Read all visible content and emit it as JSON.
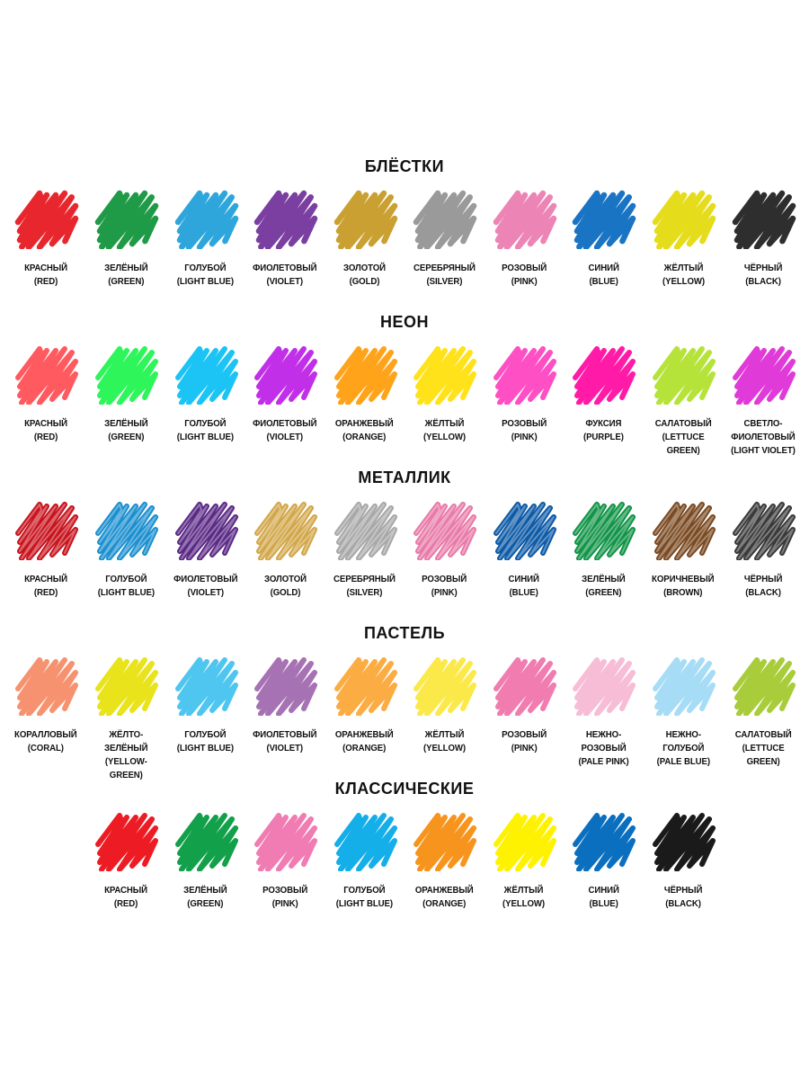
{
  "sections": [
    {
      "title": "БЛЁСТКИ",
      "style": "glitter",
      "items": [
        {
          "label": "КРАСНЫЙ\n(RED)",
          "color": "#e8262d"
        },
        {
          "label": "ЗЕЛЁНЫЙ\n(GREEN)",
          "color": "#1f9a46"
        },
        {
          "label": "ГОЛУБОЙ\n(LIGHT BLUE)",
          "color": "#2ea6dc"
        },
        {
          "label": "ФИОЛЕТОВЫЙ\n(VIOLET)",
          "color": "#7a3fa0"
        },
        {
          "label": "ЗОЛОТОЙ\n(GOLD)",
          "color": "#c9a031"
        },
        {
          "label": "СЕРЕБРЯНЫЙ\n(SILVER)",
          "color": "#9a9a9a"
        },
        {
          "label": "РОЗОВЫЙ\n(PINK)",
          "color": "#ec85b5"
        },
        {
          "label": "СИНИЙ\n(BLUE)",
          "color": "#1a74c4"
        },
        {
          "label": "ЖЁЛТЫЙ\n(YELLOW)",
          "color": "#e5dc1b"
        },
        {
          "label": "ЧЁРНЫЙ\n(BLACK)",
          "color": "#2e2e2e"
        }
      ]
    },
    {
      "title": "НЕОН",
      "style": "neon",
      "items": [
        {
          "label": "КРАСНЫЙ\n(RED)",
          "color": "#ff5a5f"
        },
        {
          "label": "ЗЕЛЁНЫЙ\n(GREEN)",
          "color": "#2df55a"
        },
        {
          "label": "ГОЛУБОЙ\n(LIGHT BLUE)",
          "color": "#1cc4f5"
        },
        {
          "label": "ФИОЛЕТОВЫЙ\n(VIOLET)",
          "color": "#c22fe8"
        },
        {
          "label": "ОРАНЖЕВЫЙ\n(ORANGE)",
          "color": "#ffa31a"
        },
        {
          "label": "ЖЁЛТЫЙ\n(YELLOW)",
          "color": "#ffe21a"
        },
        {
          "label": "РОЗОВЫЙ\n(PINK)",
          "color": "#ff4fc4"
        },
        {
          "label": "ФУКСИЯ\n(PURPLE)",
          "color": "#ff1aa8"
        },
        {
          "label": "САЛАТОВЫЙ\n(LETTUCE\nGREEN)",
          "color": "#b6e33a"
        },
        {
          "label": "СВЕТЛО-\nФИОЛЕТОВЫЙ\n(LIGHT VIOLET)",
          "color": "#e03ad8"
        }
      ]
    },
    {
      "title": "МЕТАЛЛИК",
      "style": "metallic",
      "items": [
        {
          "label": "КРАСНЫЙ\n(RED)",
          "color": "#c8141e"
        },
        {
          "label": "ГОЛУБОЙ\n(LIGHT BLUE)",
          "color": "#1b8fcf"
        },
        {
          "label": "ФИОЛЕТОВЫЙ\n(VIOLET)",
          "color": "#5b2a86"
        },
        {
          "label": "ЗОЛОТОЙ\n(GOLD)",
          "color": "#d2a74a"
        },
        {
          "label": "СЕРЕБРЯНЫЙ\n(SILVER)",
          "color": "#a8a8a8"
        },
        {
          "label": "РОЗОВЫЙ\n(PINK)",
          "color": "#e87aa8"
        },
        {
          "label": "СИНИЙ\n(BLUE)",
          "color": "#0d5aa6"
        },
        {
          "label": "ЗЕЛЁНЫЙ\n(GREEN)",
          "color": "#119447"
        },
        {
          "label": "КОРИЧНЕВЫЙ\n(BROWN)",
          "color": "#7a4a22"
        },
        {
          "label": "ЧЁРНЫЙ\n(BLACK)",
          "color": "#3a3a3a"
        }
      ]
    },
    {
      "title": "ПАСТЕЛЬ",
      "style": "pastel",
      "items": [
        {
          "label": "КОРАЛЛОВЫЙ\n(CORAL)",
          "color": "#f6926f"
        },
        {
          "label": "ЖЁЛТО-\nЗЕЛЁНЫЙ\n(YELLOW-GREEN)",
          "color": "#e8e31a"
        },
        {
          "label": "ГОЛУБОЙ\n(LIGHT BLUE)",
          "color": "#4fc6ef"
        },
        {
          "label": "ФИОЛЕТОВЫЙ\n(VIOLET)",
          "color": "#a672b4"
        },
        {
          "label": "ОРАНЖЕВЫЙ\n(ORANGE)",
          "color": "#fbac42"
        },
        {
          "label": "ЖЁЛТЫЙ\n(YELLOW)",
          "color": "#fbe94a"
        },
        {
          "label": "РОЗОВЫЙ\n(PINK)",
          "color": "#f07cb0"
        },
        {
          "label": "НЕЖНО-\nРОЗОВЫЙ\n(PALE PINK)",
          "color": "#f7bcd6"
        },
        {
          "label": "НЕЖНО-\nГОЛУБОЙ\n(PALE BLUE)",
          "color": "#a6dcf5"
        },
        {
          "label": "САЛАТОВЫЙ\n(LETTUCE\nGREEN)",
          "color": "#a8cc3a"
        }
      ]
    },
    {
      "title": "КЛАССИЧЕСКИЕ",
      "style": "classic",
      "items": [
        {
          "label": "КРАСНЫЙ\n(RED)",
          "color": "#ed1c24"
        },
        {
          "label": "ЗЕЛЁНЫЙ\n(GREEN)",
          "color": "#13a04a"
        },
        {
          "label": "РОЗОВЫЙ\n(PINK)",
          "color": "#f07cb3"
        },
        {
          "label": "ГОЛУБОЙ\n(LIGHT BLUE)",
          "color": "#14aee8"
        },
        {
          "label": "ОРАНЖЕВЫЙ\n(ORANGE)",
          "color": "#f7941d"
        },
        {
          "label": "ЖЁЛТЫЙ\n(YELLOW)",
          "color": "#fff200"
        },
        {
          "label": "СИНИЙ\n(BLUE)",
          "color": "#0b6fc0"
        },
        {
          "label": "ЧЁРНЫЙ\n(BLACK)",
          "color": "#1a1a1a"
        }
      ]
    }
  ]
}
